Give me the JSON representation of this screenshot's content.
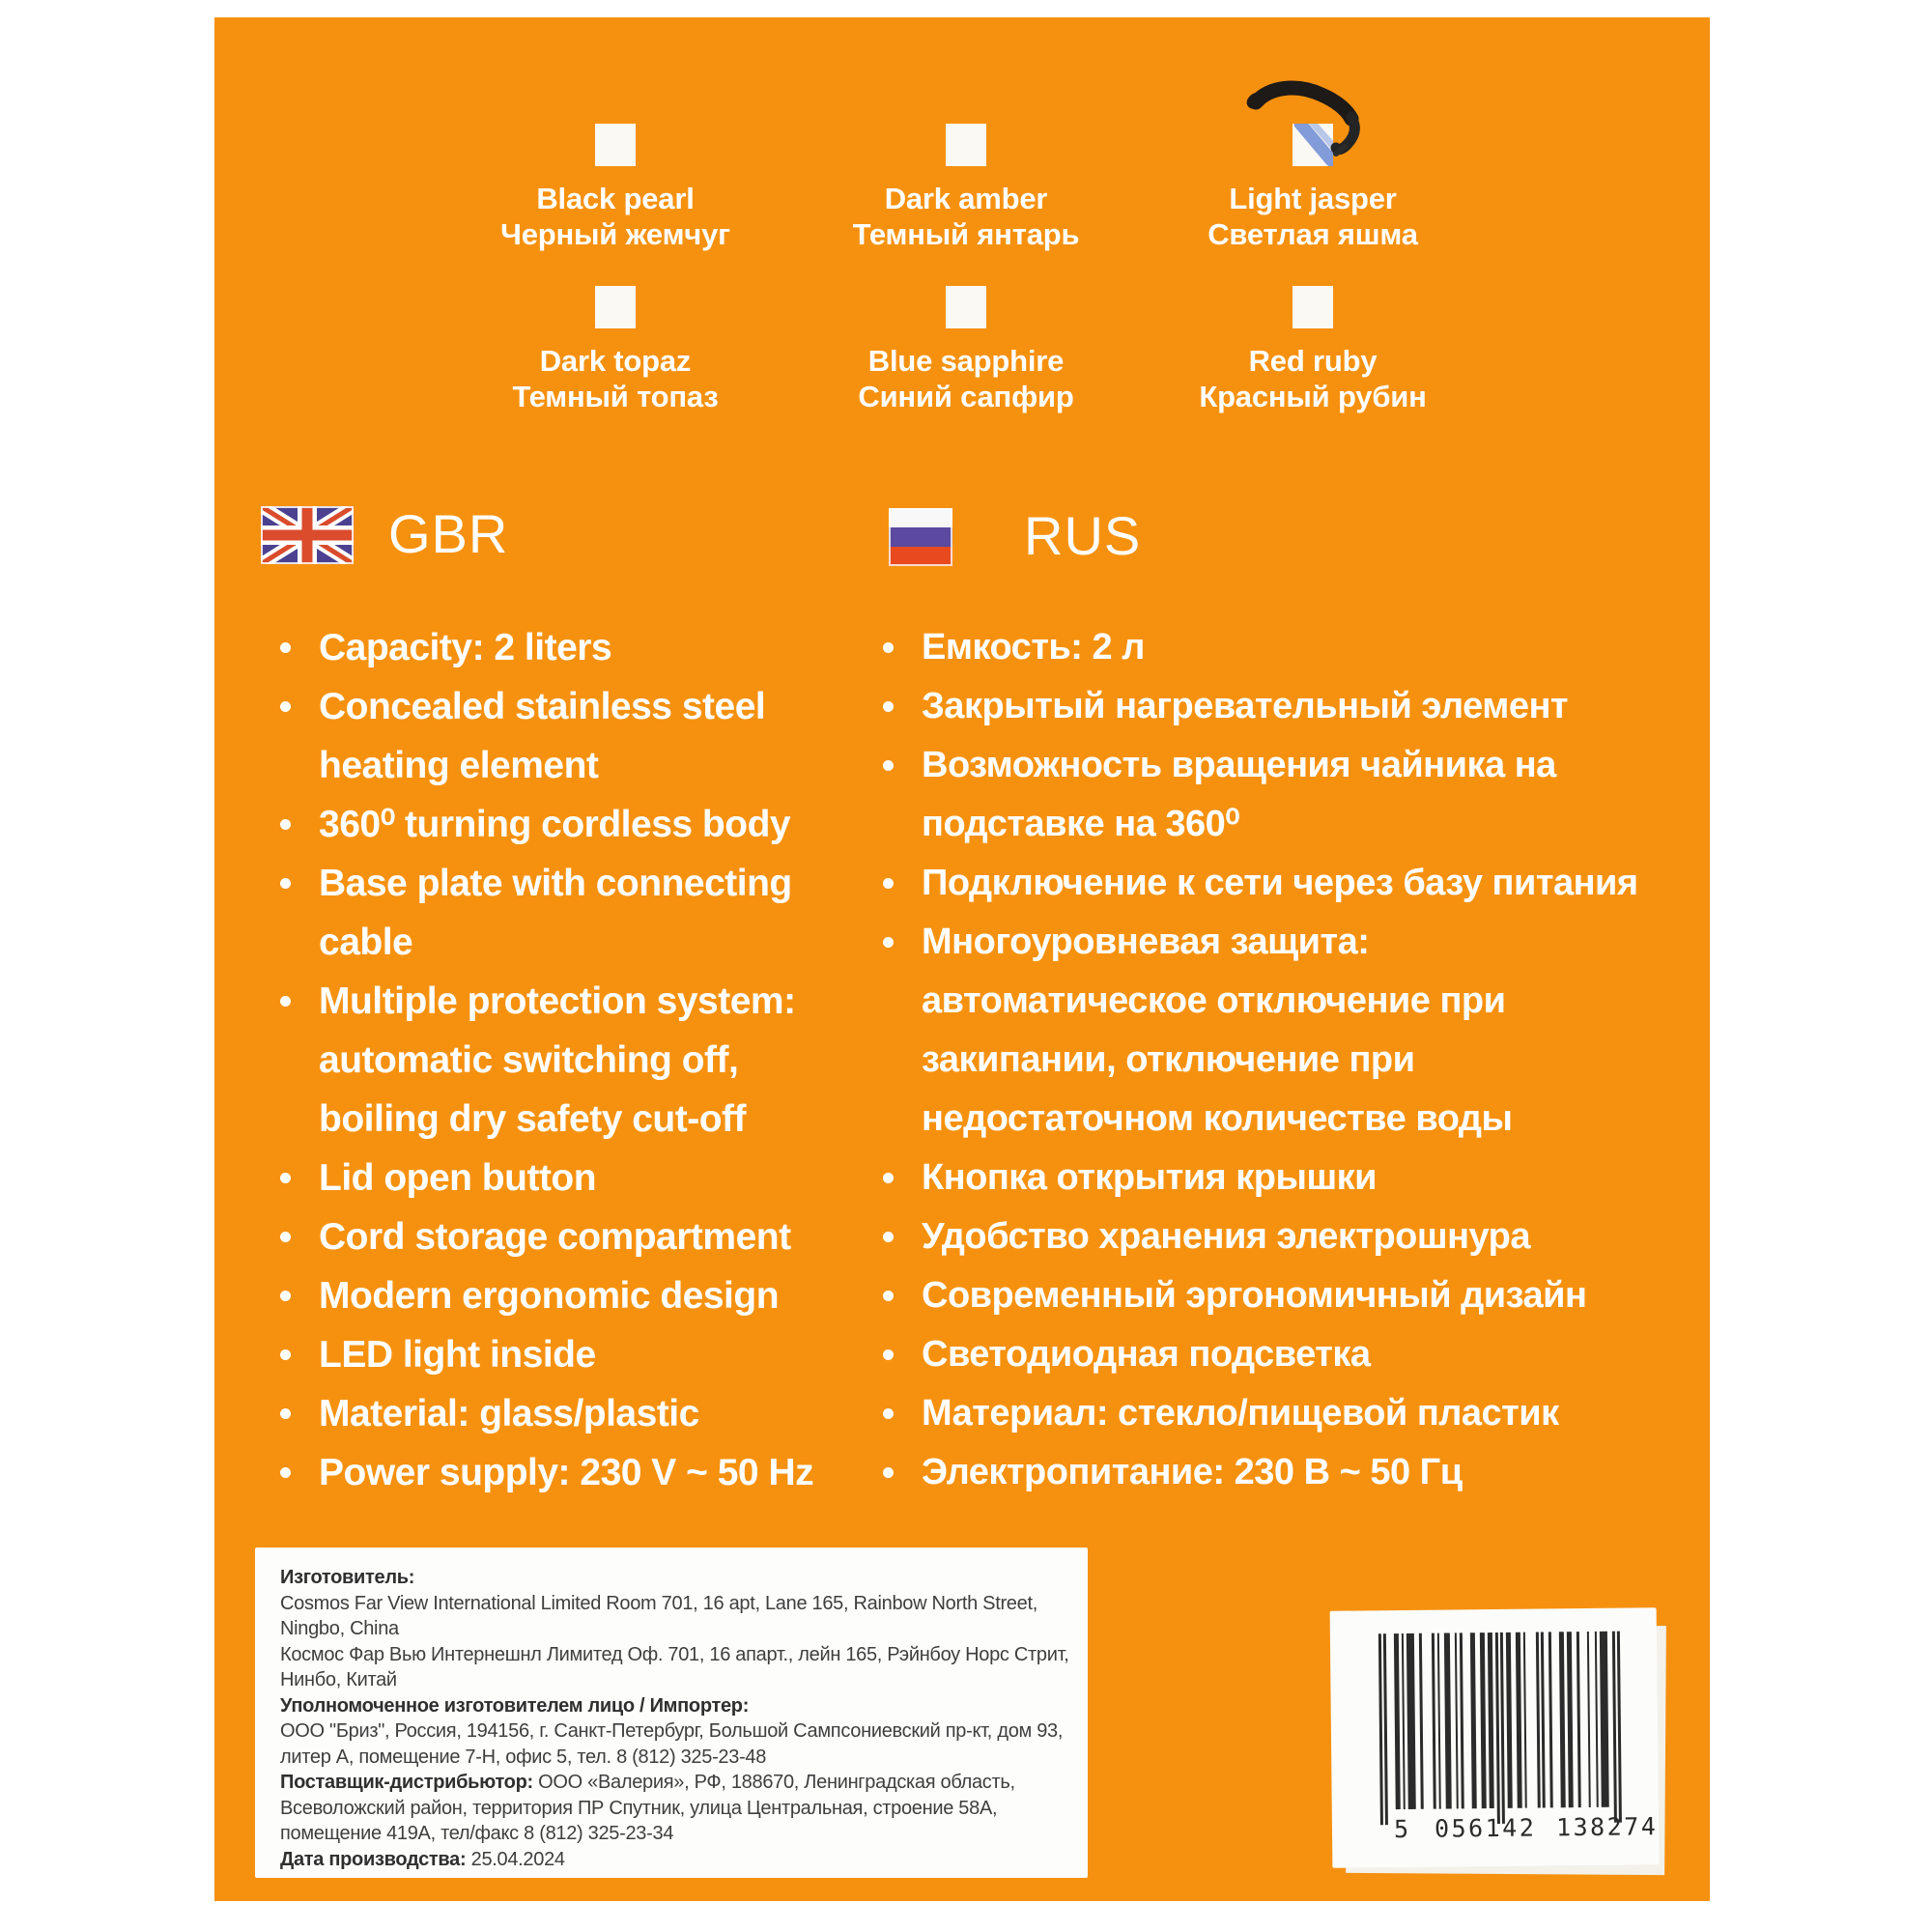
{
  "product_panel": {
    "background_color": "#F6910F",
    "checkbox_color": "#FBF9F4",
    "text_color": "#FFFFFF",
    "color_options": {
      "rows": [
        [
          {
            "en": "Black pearl",
            "ru": "Черный жемчуг",
            "checked": false
          },
          {
            "en": "Dark amber",
            "ru": "Темный янтарь",
            "checked": false
          },
          {
            "en": "Light jasper",
            "ru": "Светлая яшма",
            "checked": true
          }
        ],
        [
          {
            "en": "Dark topaz",
            "ru": "Темный топаз",
            "checked": false
          },
          {
            "en": "Blue sapphire",
            "ru": "Синий сапфир",
            "checked": false
          },
          {
            "en": "Red ruby",
            "ru": "Красный рубин",
            "checked": false
          }
        ]
      ]
    },
    "sections": [
      {
        "code": "GBR",
        "flag": "united-kingdom",
        "features": [
          [
            "Capacity: 2 liters"
          ],
          [
            "Concealed stainless steel",
            "heating element"
          ],
          [
            "360⁰ turning cordless body"
          ],
          [
            "Base plate with connecting",
            "cable"
          ],
          [
            "Multiple protection system:",
            "automatic switching off,",
            "boiling dry safety cut-off"
          ],
          [
            "Lid open button"
          ],
          [
            "Cord storage compartment"
          ],
          [
            "Modern ergonomic design"
          ],
          [
            "LED light inside"
          ],
          [
            "Material: glass/plastic"
          ],
          [
            "Power supply: 230 V ~ 50 Hz"
          ]
        ]
      },
      {
        "code": "RUS",
        "flag": "russia",
        "features": [
          [
            "Емкость: 2 л"
          ],
          [
            "Закрытый нагревательный элемент"
          ],
          [
            "Возможность вращения чайника на",
            "подставке на 360⁰"
          ],
          [
            "Подключение к сети через базу питания"
          ],
          [
            "Многоуровневая защита:",
            "автоматическое отключение при",
            "закипании, отключение при",
            "недостаточном количестве воды"
          ],
          [
            "Кнопка открытия крышки"
          ],
          [
            "Удобство хранения электрошнура"
          ],
          [
            "Современный эргономичный дизайн"
          ],
          [
            "Светодиодная подсветка"
          ],
          [
            "Материал: стекло/пищевой пластик"
          ],
          [
            "Электропитание: 230 В ~ 50 Гц"
          ]
        ]
      }
    ],
    "info_box": {
      "lines": [
        {
          "bold": "Изготовитель:",
          "text": ""
        },
        {
          "bold": "",
          "text": "Cosmos Far View International Limited  Room 701, 16 apt, Lane 165, Rainbow North Street,"
        },
        {
          "bold": "",
          "text": "Ningbo, China"
        },
        {
          "bold": "",
          "text": "Космос Фар Вью Интернешнл Лимитед Оф. 701, 16 апарт., лейн 165, Рэйнбоу Норс Стрит,"
        },
        {
          "bold": "",
          "text": "Нинбо, Китай"
        },
        {
          "bold": "Уполномоченное изготовителем лицо / Импортер:",
          "text": ""
        },
        {
          "bold": "",
          "text": "ООО \"Бриз\", Россия, 194156, г. Санкт-Петербург, Большой Сампсониевский пр-кт, дом 93,"
        },
        {
          "bold": "",
          "text": "литер А, помещение 7-Н, офис 5, тел. 8 (812) 325-23-48"
        },
        {
          "bold": "Поставщик-дистрибьютор:",
          "text": " ООО «Валерия»,  РФ, 188670, Ленинградская область,"
        },
        {
          "bold": "",
          "text": "Всеволожский район, территория ПР Спутник, улица Центральная, строение 58А,"
        },
        {
          "bold": "",
          "text": "помещение 419А, тел/факс 8 (812) 325-23-34"
        },
        {
          "bold": "Дата производства:",
          "text": " 25.04.2024"
        }
      ]
    },
    "barcode": {
      "number": "5056142138274",
      "display": "5 056142 138274"
    },
    "flag_colors": {
      "uk_blue": "#4C4190",
      "uk_red": "#DA4C2C",
      "ru_white": "#F8F8F8",
      "ru_blue": "#5B4AA0",
      "ru_red": "#E8491F"
    }
  }
}
